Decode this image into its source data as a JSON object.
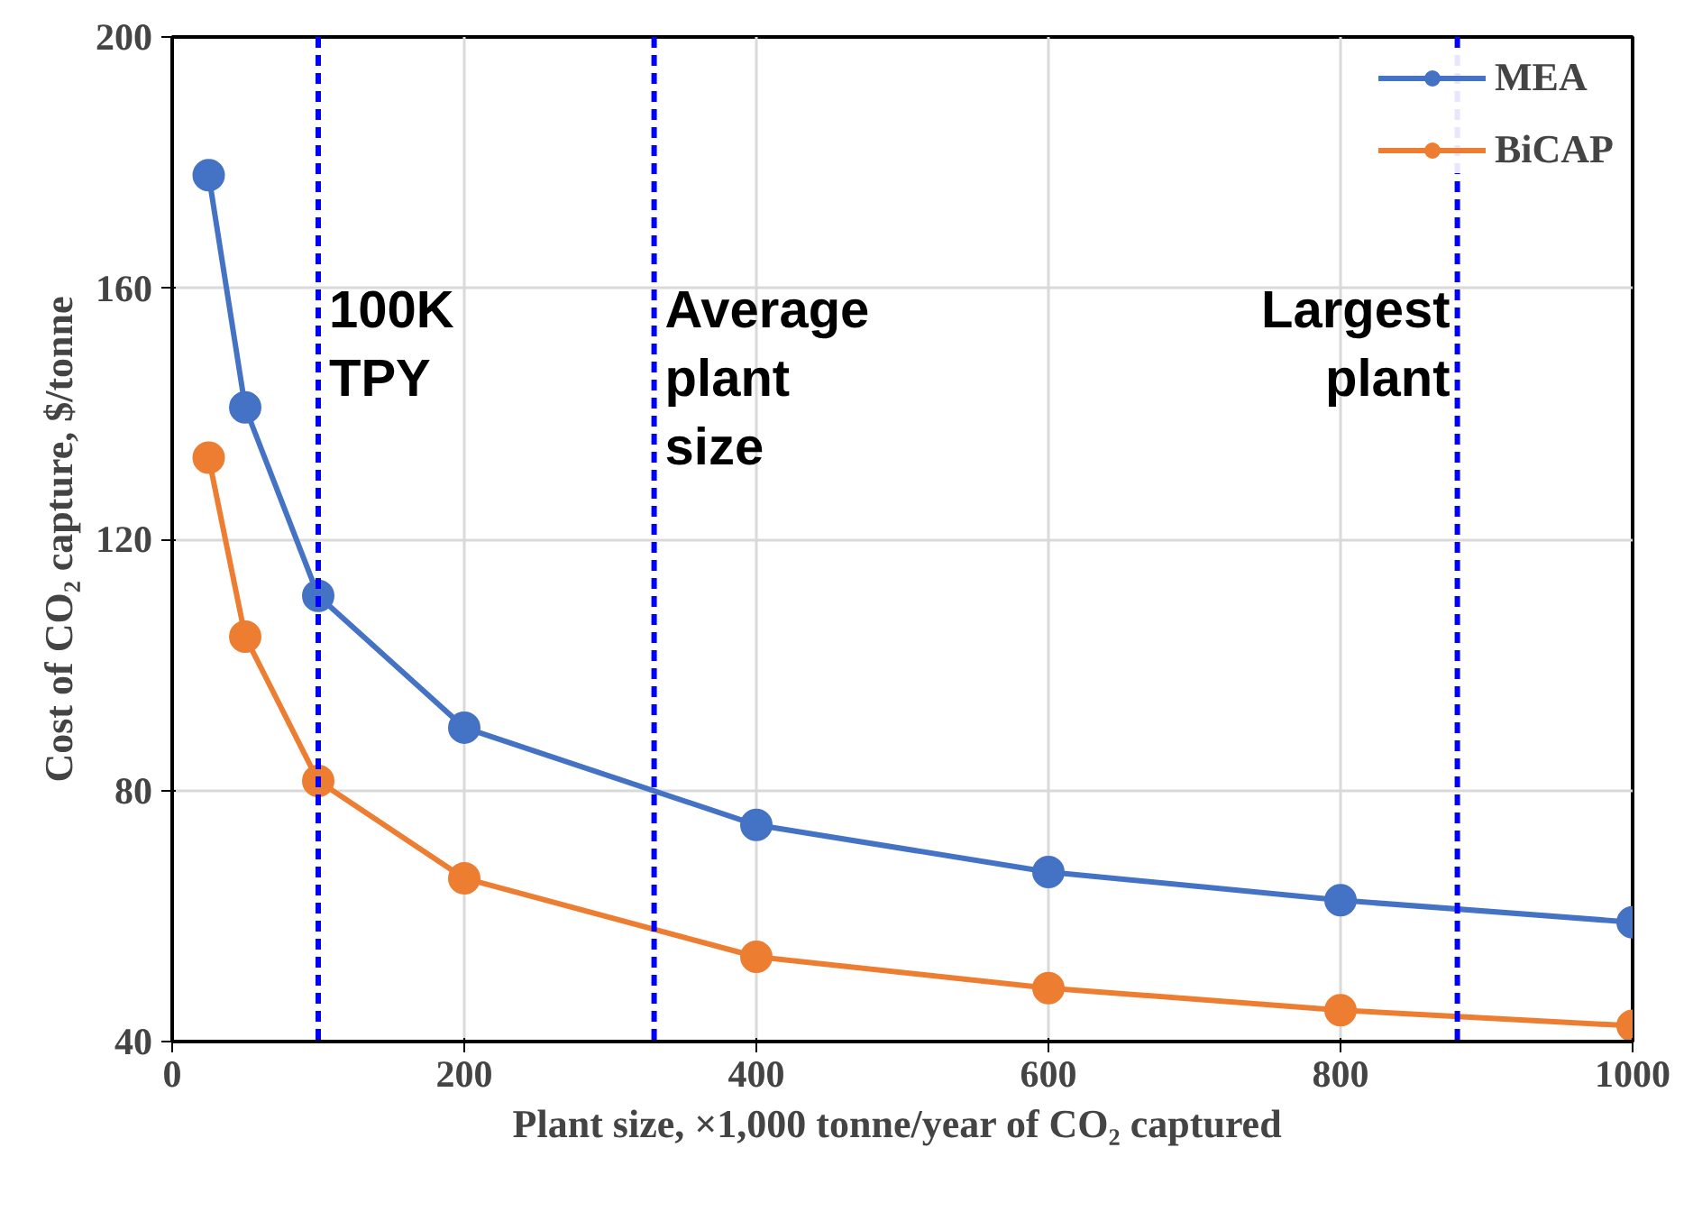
{
  "chart_data": {
    "type": "line",
    "xlabel": "Plant size,  ×1,000 tonne/year of CO₂ captured",
    "ylabel": "Cost of CO₂ capture, $/tonne",
    "x": [
      25,
      50,
      100,
      200,
      400,
      600,
      800,
      1000
    ],
    "series": [
      {
        "name": "MEA",
        "color": "#4472c4",
        "values": [
          178,
          141,
          111,
          90,
          74.5,
          67,
          62.5,
          59
        ]
      },
      {
        "name": "BiCAP",
        "color": "#ed7d31",
        "values": [
          133,
          104.5,
          81.5,
          66,
          53.5,
          48.5,
          45,
          42.5
        ]
      }
    ],
    "xlim": [
      0,
      1000
    ],
    "xticks": [
      0,
      200,
      400,
      600,
      800,
      1000
    ],
    "ylim": [
      40,
      200
    ],
    "yticks": [
      40,
      80,
      120,
      160,
      200
    ],
    "ref_lines": [
      {
        "axis": "x",
        "value": 100,
        "label": "100K\nTPY",
        "color": "#0000ff",
        "line_style": "dashed"
      },
      {
        "axis": "x",
        "value": 330,
        "label": "Average\nplant\nsize",
        "color": "#0000ff",
        "line_style": "dashed"
      },
      {
        "axis": "x",
        "value": 880,
        "label": "Largest\nplant",
        "color": "#0000ff",
        "line_style": "dashed"
      }
    ],
    "grid": true,
    "legend": "top right",
    "marker": "circle",
    "line_style": "solid"
  }
}
